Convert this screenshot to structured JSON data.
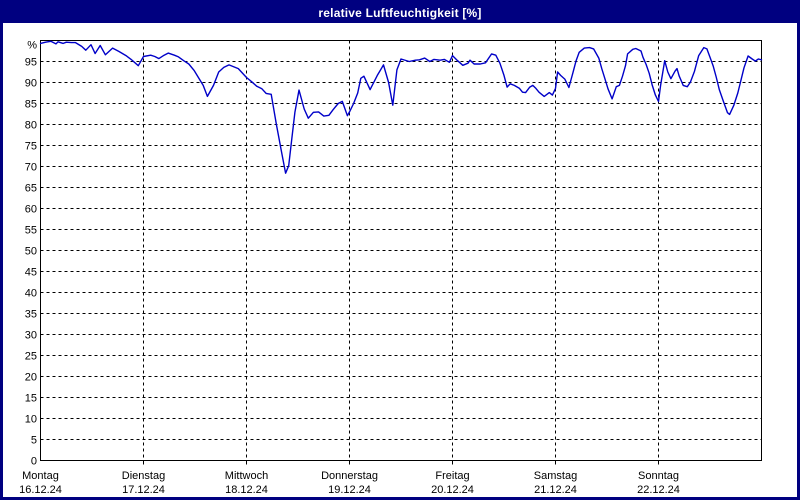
{
  "window": {
    "title": "relative Luftfeuchtigkeit [%]"
  },
  "colors": {
    "frame": "#000080",
    "title_text": "#FFFFFF",
    "plot_background": "#FFFFFF",
    "grid": "#000000",
    "axis_text": "#000000",
    "line": "#0000C8"
  },
  "chart_data": {
    "type": "line",
    "title": "relative Luftfeuchtigkeit [%]",
    "y_unit_label": "%",
    "ylim": [
      0,
      100
    ],
    "ytick_step": 5,
    "yticks": [
      "0",
      "5",
      "10",
      "15",
      "20",
      "25",
      "30",
      "35",
      "40",
      "45",
      "50",
      "55",
      "60",
      "65",
      "70",
      "75",
      "80",
      "85",
      "90",
      "95"
    ],
    "grid": true,
    "legend": "none",
    "x_range_days": [
      0,
      7
    ],
    "days": [
      {
        "name": "Montag",
        "date": "16.12.24"
      },
      {
        "name": "Dienstag",
        "date": "17.12.24"
      },
      {
        "name": "Mittwoch",
        "date": "18.12.24"
      },
      {
        "name": "Donnerstag",
        "date": "19.12.24"
      },
      {
        "name": "Freitag",
        "date": "20.12.24"
      },
      {
        "name": "Samstag",
        "date": "21.12.24"
      },
      {
        "name": "Sonntag",
        "date": "22.12.24"
      }
    ],
    "series": [
      {
        "name": "relative Luftfeuchtigkeit",
        "color": "#0000C8",
        "points": [
          [
            0.0,
            99.3
          ],
          [
            0.05,
            99.6
          ],
          [
            0.1,
            99.8
          ],
          [
            0.15,
            99.2
          ],
          [
            0.17,
            99.7
          ],
          [
            0.22,
            99.3
          ],
          [
            0.25,
            99.6
          ],
          [
            0.3,
            99.5
          ],
          [
            0.34,
            99.5
          ],
          [
            0.4,
            98.6
          ],
          [
            0.44,
            97.7
          ],
          [
            0.49,
            99.0
          ],
          [
            0.53,
            96.9
          ],
          [
            0.58,
            98.8
          ],
          [
            0.63,
            96.6
          ],
          [
            0.7,
            98.2
          ],
          [
            0.76,
            97.4
          ],
          [
            0.83,
            96.4
          ],
          [
            0.88,
            95.5
          ],
          [
            0.95,
            94.0
          ],
          [
            1.0,
            96.2
          ],
          [
            1.07,
            96.5
          ],
          [
            1.11,
            96.2
          ],
          [
            1.15,
            95.7
          ],
          [
            1.2,
            96.5
          ],
          [
            1.24,
            97.0
          ],
          [
            1.3,
            96.5
          ],
          [
            1.34,
            96.1
          ],
          [
            1.39,
            95.2
          ],
          [
            1.44,
            94.4
          ],
          [
            1.49,
            92.9
          ],
          [
            1.53,
            91.3
          ],
          [
            1.58,
            89.3
          ],
          [
            1.62,
            86.7
          ],
          [
            1.68,
            89.3
          ],
          [
            1.73,
            92.5
          ],
          [
            1.78,
            93.6
          ],
          [
            1.83,
            94.2
          ],
          [
            1.92,
            93.3
          ],
          [
            2.0,
            91.2
          ],
          [
            2.05,
            90.2
          ],
          [
            2.1,
            89.1
          ],
          [
            2.15,
            88.5
          ],
          [
            2.19,
            87.4
          ],
          [
            2.24,
            87.2
          ],
          [
            2.29,
            80.0
          ],
          [
            2.34,
            73.5
          ],
          [
            2.38,
            68.4
          ],
          [
            2.41,
            70.2
          ],
          [
            2.44,
            76.6
          ],
          [
            2.47,
            82.9
          ],
          [
            2.51,
            88.2
          ],
          [
            2.56,
            83.7
          ],
          [
            2.6,
            81.5
          ],
          [
            2.65,
            82.9
          ],
          [
            2.7,
            83.0
          ],
          [
            2.75,
            82.0
          ],
          [
            2.8,
            82.2
          ],
          [
            2.84,
            83.5
          ],
          [
            2.89,
            85.0
          ],
          [
            2.93,
            85.5
          ],
          [
            2.98,
            82.1
          ],
          [
            3.0,
            83.0
          ],
          [
            3.04,
            85.0
          ],
          [
            3.08,
            87.5
          ],
          [
            3.11,
            91.0
          ],
          [
            3.14,
            91.5
          ],
          [
            3.2,
            88.3
          ],
          [
            3.27,
            91.7
          ],
          [
            3.33,
            94.2
          ],
          [
            3.38,
            90.0
          ],
          [
            3.42,
            84.6
          ],
          [
            3.46,
            93.0
          ],
          [
            3.5,
            95.6
          ],
          [
            3.58,
            95.0
          ],
          [
            3.64,
            95.3
          ],
          [
            3.68,
            95.4
          ],
          [
            3.73,
            95.8
          ],
          [
            3.78,
            95.0
          ],
          [
            3.82,
            95.5
          ],
          [
            3.88,
            95.3
          ],
          [
            3.92,
            95.5
          ],
          [
            3.97,
            94.8
          ],
          [
            4.0,
            96.4
          ],
          [
            4.05,
            95.2
          ],
          [
            4.1,
            94.1
          ],
          [
            4.15,
            94.6
          ],
          [
            4.17,
            95.3
          ],
          [
            4.21,
            94.4
          ],
          [
            4.27,
            94.4
          ],
          [
            4.32,
            94.7
          ],
          [
            4.38,
            96.8
          ],
          [
            4.42,
            96.5
          ],
          [
            4.46,
            94.6
          ],
          [
            4.5,
            91.7
          ],
          [
            4.53,
            88.9
          ],
          [
            4.56,
            89.7
          ],
          [
            4.6,
            89.3
          ],
          [
            4.65,
            88.6
          ],
          [
            4.68,
            87.7
          ],
          [
            4.71,
            87.6
          ],
          [
            4.75,
            88.9
          ],
          [
            4.78,
            89.3
          ],
          [
            4.81,
            88.6
          ],
          [
            4.84,
            87.7
          ],
          [
            4.89,
            86.7
          ],
          [
            4.94,
            87.6
          ],
          [
            4.97,
            87.0
          ],
          [
            5.0,
            88.6
          ],
          [
            5.02,
            92.5
          ],
          [
            5.05,
            91.7
          ],
          [
            5.09,
            90.8
          ],
          [
            5.13,
            88.8
          ],
          [
            5.17,
            92.4
          ],
          [
            5.2,
            95.2
          ],
          [
            5.23,
            97.2
          ],
          [
            5.28,
            98.2
          ],
          [
            5.33,
            98.3
          ],
          [
            5.37,
            98.0
          ],
          [
            5.42,
            95.8
          ],
          [
            5.45,
            93.2
          ],
          [
            5.48,
            90.9
          ],
          [
            5.51,
            88.5
          ],
          [
            5.55,
            86.1
          ],
          [
            5.59,
            89.0
          ],
          [
            5.62,
            89.3
          ],
          [
            5.65,
            91.5
          ],
          [
            5.68,
            94.0
          ],
          [
            5.7,
            96.8
          ],
          [
            5.75,
            97.9
          ],
          [
            5.78,
            98.1
          ],
          [
            5.83,
            97.5
          ],
          [
            5.85,
            96.0
          ],
          [
            5.88,
            94.3
          ],
          [
            5.91,
            92.2
          ],
          [
            5.94,
            89.3
          ],
          [
            5.97,
            87.0
          ],
          [
            6.0,
            85.5
          ],
          [
            6.02,
            89.3
          ],
          [
            6.06,
            95.2
          ],
          [
            6.09,
            92.5
          ],
          [
            6.12,
            90.9
          ],
          [
            6.16,
            92.7
          ],
          [
            6.18,
            93.3
          ],
          [
            6.2,
            91.6
          ],
          [
            6.24,
            89.3
          ],
          [
            6.28,
            89.0
          ],
          [
            6.31,
            90.1
          ],
          [
            6.35,
            92.7
          ],
          [
            6.39,
            96.4
          ],
          [
            6.44,
            98.3
          ],
          [
            6.47,
            98.0
          ],
          [
            6.5,
            96.0
          ],
          [
            6.53,
            94.0
          ],
          [
            6.56,
            91.3
          ],
          [
            6.59,
            88.3
          ],
          [
            6.63,
            85.5
          ],
          [
            6.67,
            82.8
          ],
          [
            6.69,
            82.4
          ],
          [
            6.73,
            84.5
          ],
          [
            6.77,
            87.5
          ],
          [
            6.8,
            90.5
          ],
          [
            6.83,
            93.5
          ],
          [
            6.87,
            96.3
          ],
          [
            6.91,
            95.6
          ],
          [
            6.94,
            95.1
          ],
          [
            6.97,
            95.6
          ],
          [
            7.0,
            95.4
          ]
        ]
      }
    ]
  }
}
